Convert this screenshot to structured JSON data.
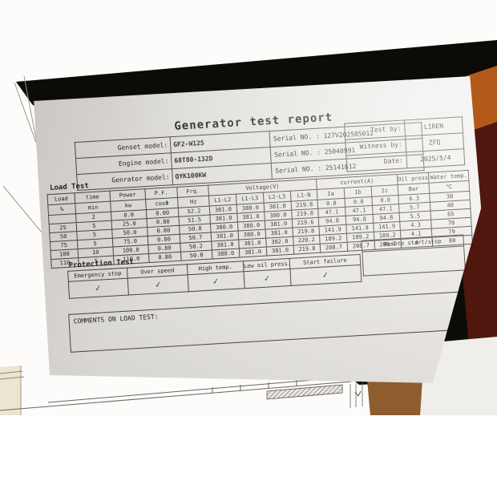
{
  "title": "Generator test report",
  "sign_table": {
    "rows": [
      {
        "label": "Test by:",
        "value": "LIREN"
      },
      {
        "label": "Witness by:",
        "value": "ZFQ"
      },
      {
        "label": "Date:",
        "value": "2025/5/4"
      }
    ]
  },
  "model_table": {
    "rows": [
      {
        "label": "Genset model:",
        "value": "GF2-W125",
        "serial_label": "Serial NO. :",
        "serial": "127V202505012"
      },
      {
        "label": "Engine model:",
        "value": "68T80-132D",
        "serial_label": "Serial NO. :",
        "serial": "25040991"
      },
      {
        "label": "Genrator model:",
        "value": "QYK100KW",
        "serial_label": "Serial NO. :",
        "serial": "25141612"
      }
    ]
  },
  "load_test": {
    "section_label": "Load Test",
    "header": {
      "load": "Load",
      "time": "time",
      "power": "Power",
      "pf": "P.F.",
      "frq": "Frq.",
      "voltage": "Voltage(V)",
      "current": "current(A)",
      "oil_press": "Oil press.",
      "water_temp": "Water temp.",
      "load_unit": "%",
      "time_unit": "min",
      "power_unit": "kw",
      "pf_unit": "cosΦ",
      "frq_unit": "Hz",
      "v1": "L1-L2",
      "v2": "L1-L3",
      "v3": "L2-L3",
      "v4": "L1-N",
      "ia": "Ia",
      "ib": "Ib",
      "ic": "Ic",
      "oil_unit": "Bar",
      "water_unit": "℃"
    },
    "rows": [
      [
        "",
        "2",
        "0.0",
        "0.00",
        "52.2",
        "381.0",
        "380.0",
        "381.0",
        "219.8",
        "0.0",
        "0.0",
        "0.0",
        "6.3",
        "30"
      ],
      [
        "25",
        "5",
        "25.0",
        "0.80",
        "51.5",
        "381.0",
        "381.0",
        "380.0",
        "219.8",
        "47.1",
        "47.1",
        "47.1",
        "5.7",
        "40"
      ],
      [
        "50",
        "5",
        "50.0",
        "0.80",
        "50.8",
        "380.0",
        "380.0",
        "381.0",
        "219.6",
        "94.8",
        "94.8",
        "94.8",
        "5.5",
        "65"
      ],
      [
        "75",
        "5",
        "75.0",
        "0.80",
        "50.7",
        "381.0",
        "380.0",
        "381.0",
        "219.8",
        "141.9",
        "141.9",
        "141.9",
        "4.3",
        "70"
      ],
      [
        "100",
        "10",
        "100.0",
        "0.80",
        "50.2",
        "381.0",
        "381.0",
        "382.0",
        "220.2",
        "189.2",
        "189.2",
        "189.2",
        "4.1",
        "79"
      ],
      [
        "110",
        "5",
        "110.0",
        "0.80",
        "50.0",
        "380.0",
        "381.0",
        "381.0",
        "219.8",
        "208.7",
        "208.7",
        "208.7",
        "4",
        "80"
      ]
    ]
  },
  "protection_test": {
    "section_label": "Protection Test",
    "columns": [
      "Emergency stop",
      "Over speed",
      "High temp.",
      "Low oil press.",
      "Start failure"
    ],
    "results": [
      "✓",
      "✓",
      "✓",
      "✓",
      "✓"
    ],
    "remote_label": "Remote start/stop",
    "remote_result": ""
  },
  "comments_label": "COMMENTS ON LOAD TEST:",
  "pen_mark": "✓",
  "colors": {
    "paper": "#e3e1dd",
    "table_line": "#4a453e",
    "desk_black": "#0d0b08",
    "desk_orange": "#b35a1a",
    "desk_maroon": "#4f170d",
    "pen_blue": "#4668c8"
  }
}
